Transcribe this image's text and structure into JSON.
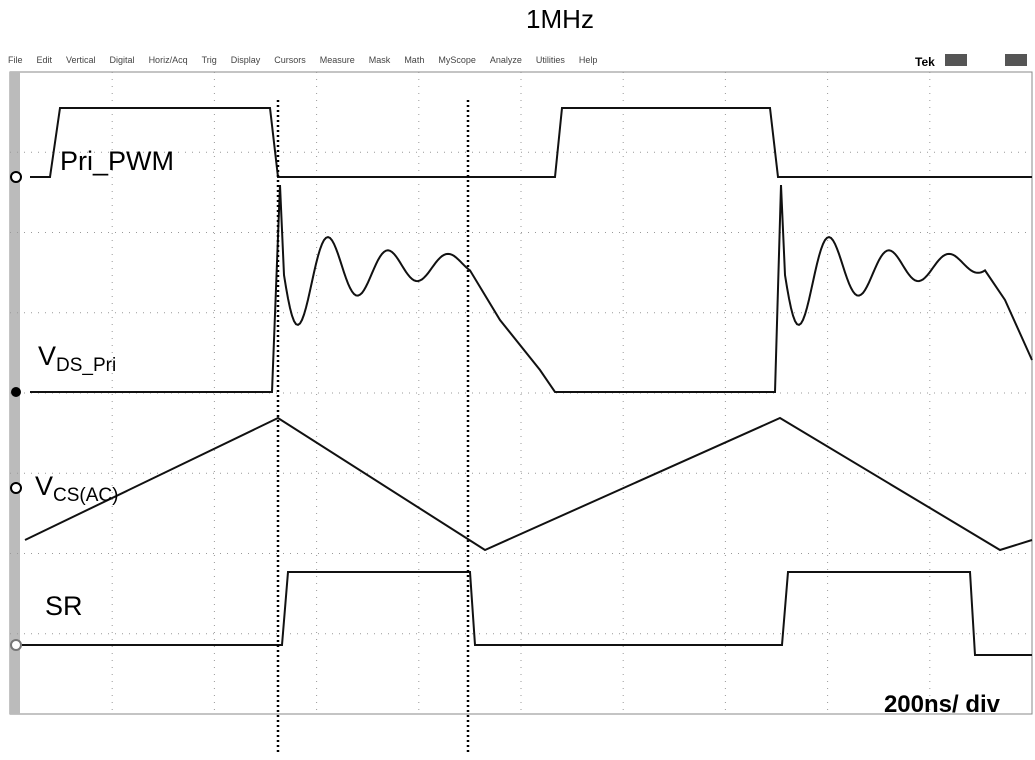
{
  "title": "1MHz",
  "menu": [
    "File",
    "Edit",
    "Vertical",
    "Digital",
    "Horiz/Acq",
    "Trig",
    "Display",
    "Cursors",
    "Measure",
    "Mask",
    "Math",
    "MyScope",
    "Analyze",
    "Utilities",
    "Help"
  ],
  "brand": "Tek",
  "labels": {
    "pri_pwm": "Pri_PWM",
    "vds": {
      "main": "V",
      "sub": "DS_Pri"
    },
    "vcs": {
      "main": "V",
      "sub": "CS(AC)"
    },
    "sr": "SR"
  },
  "timebase": "200ns/ div"
}
